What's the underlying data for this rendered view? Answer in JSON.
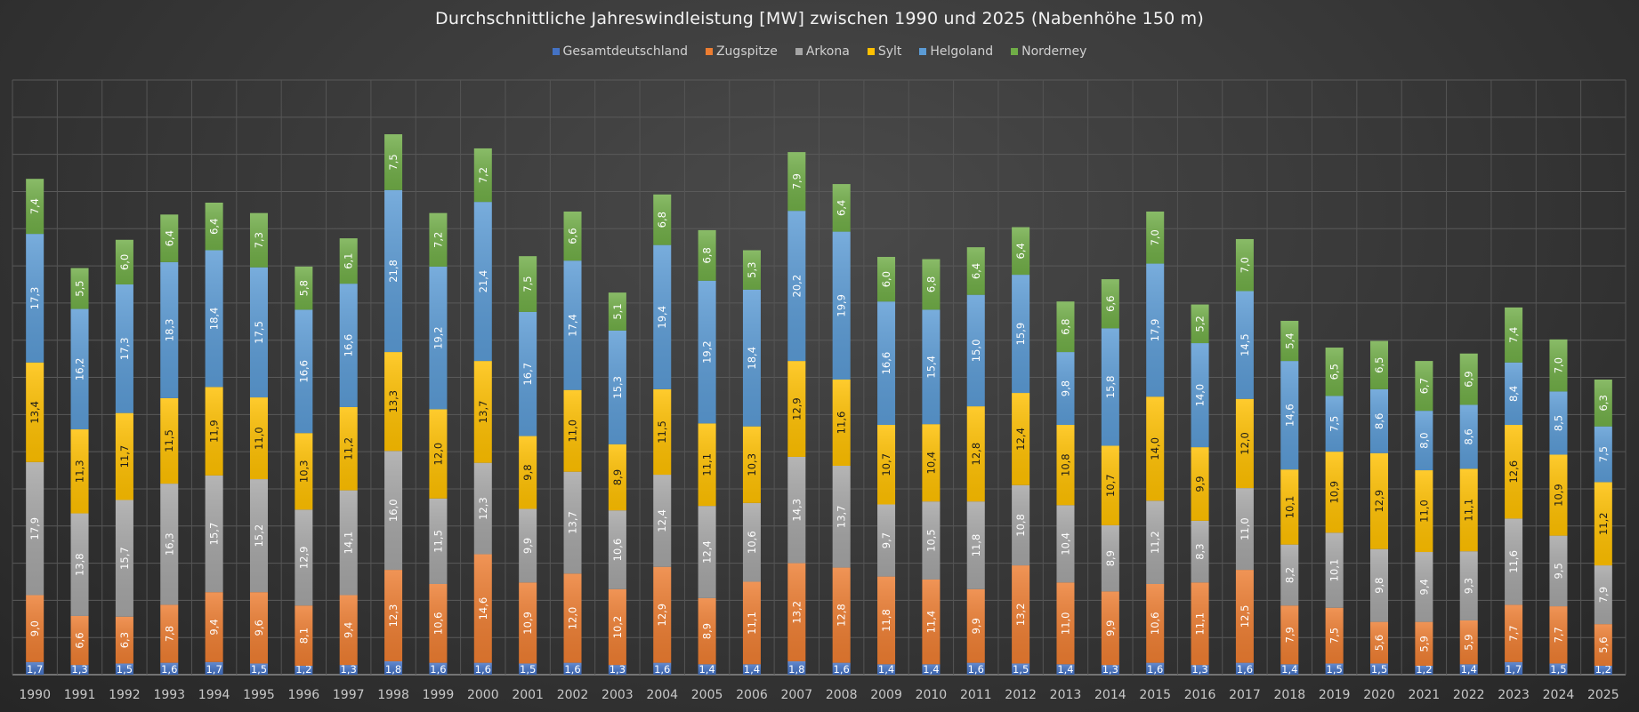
{
  "chart_data": {
    "type": "bar",
    "stacked": true,
    "title": "Durchschnittliche Jahreswindleistung [MW] zwischen 1990 und 2025 (Nabenhöhe 150 m)",
    "xlabel": "",
    "ylabel": "",
    "ylim": [
      0,
      80
    ],
    "grid": true,
    "legend_position": "top",
    "categories": [
      "1990",
      "1991",
      "1992",
      "1993",
      "1994",
      "1995",
      "1996",
      "1997",
      "1998",
      "1999",
      "2000",
      "2001",
      "2002",
      "2003",
      "2004",
      "2005",
      "2006",
      "2007",
      "2008",
      "2009",
      "2010",
      "2011",
      "2012",
      "2013",
      "2014",
      "2015",
      "2016",
      "2017",
      "2018",
      "2019",
      "2020",
      "2021",
      "2022",
      "2023",
      "2024",
      "2025"
    ],
    "series": [
      {
        "name": "Gesamtdeutschland",
        "color": "#4472c4",
        "label_color": "#ffffff",
        "values": [
          1.7,
          1.3,
          1.5,
          1.6,
          1.7,
          1.5,
          1.2,
          1.3,
          1.8,
          1.6,
          1.6,
          1.5,
          1.6,
          1.3,
          1.6,
          1.4,
          1.4,
          1.8,
          1.6,
          1.4,
          1.4,
          1.6,
          1.5,
          1.4,
          1.3,
          1.6,
          1.3,
          1.6,
          1.4,
          1.5,
          1.5,
          1.2,
          1.4,
          1.7,
          1.5,
          1.2
        ]
      },
      {
        "name": "Zugspitze",
        "color": "#ed7d31",
        "label_color": "#ffffff",
        "values": [
          9.0,
          6.6,
          6.3,
          7.8,
          9.4,
          9.6,
          8.1,
          9.4,
          12.3,
          10.6,
          14.6,
          10.9,
          12.0,
          10.2,
          12.9,
          8.9,
          11.1,
          13.2,
          12.8,
          11.8,
          11.4,
          9.9,
          13.2,
          11.0,
          9.9,
          10.6,
          11.1,
          12.5,
          7.9,
          7.5,
          5.6,
          5.9,
          5.9,
          7.7,
          7.7,
          5.6
        ]
      },
      {
        "name": "Arkona",
        "color": "#a5a5a5",
        "label_color": "#ffffff",
        "values": [
          17.9,
          13.8,
          15.7,
          16.3,
          15.7,
          15.2,
          12.9,
          14.1,
          16.0,
          11.5,
          12.3,
          9.9,
          13.7,
          10.6,
          12.4,
          12.4,
          10.6,
          14.3,
          13.7,
          9.7,
          10.5,
          11.8,
          10.8,
          10.4,
          8.9,
          11.2,
          8.3,
          11.0,
          8.2,
          10.1,
          9.8,
          9.4,
          9.3,
          11.6,
          9.5,
          7.9
        ]
      },
      {
        "name": "Sylt",
        "color": "#ffc000",
        "label_color": "#1a1a1a",
        "values": [
          13.4,
          11.3,
          11.7,
          11.5,
          11.9,
          11.0,
          10.3,
          11.2,
          13.3,
          12.0,
          13.7,
          9.8,
          11.0,
          8.9,
          11.5,
          11.1,
          10.3,
          12.9,
          11.6,
          10.7,
          10.4,
          12.8,
          12.4,
          10.8,
          10.7,
          14.0,
          9.9,
          12.0,
          10.1,
          10.9,
          12.9,
          11.0,
          11.1,
          12.6,
          10.9,
          11.2
        ]
      },
      {
        "name": "Helgoland",
        "color": "#5b9bd5",
        "label_color": "#ffffff",
        "values": [
          17.3,
          16.2,
          17.3,
          18.3,
          18.4,
          17.5,
          16.6,
          16.6,
          21.8,
          19.2,
          21.4,
          16.7,
          17.4,
          15.3,
          19.4,
          19.2,
          18.4,
          20.2,
          19.9,
          16.6,
          15.4,
          15.0,
          15.9,
          9.8,
          15.8,
          17.9,
          14.0,
          14.5,
          14.6,
          7.5,
          8.6,
          8.0,
          8.6,
          8.4,
          8.5,
          7.5
        ]
      },
      {
        "name": "Norderney",
        "color": "#70ad47",
        "label_color": "#ffffff",
        "values": [
          7.4,
          5.5,
          6.0,
          6.4,
          6.4,
          7.3,
          5.8,
          6.1,
          7.5,
          7.2,
          7.2,
          7.5,
          6.6,
          5.1,
          6.8,
          6.8,
          5.3,
          7.9,
          6.4,
          6.0,
          6.8,
          6.4,
          6.4,
          6.8,
          6.6,
          7.0,
          5.2,
          7.0,
          5.4,
          6.5,
          6.5,
          6.7,
          6.9,
          7.4,
          7.0,
          6.3
        ]
      }
    ]
  }
}
